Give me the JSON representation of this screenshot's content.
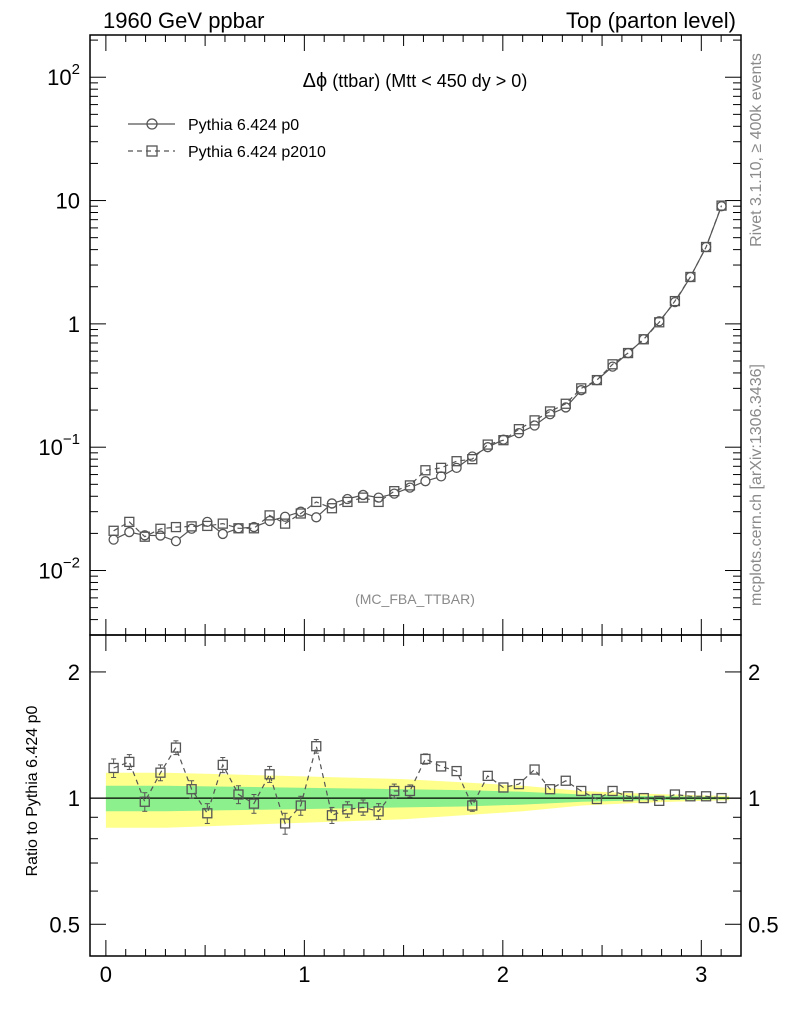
{
  "header": {
    "left": "1960 GeV ppbar",
    "right": "Top (parton level)"
  },
  "side_labels": {
    "rivet": "Rivet 3.1.10, ≥ 400k events",
    "mcplots": "mcplots.cern.ch [arXiv:1306.3436]"
  },
  "chart_data": [
    {
      "type": "line",
      "title_symbol": "Δϕ",
      "title_rest": " (ttbar) (Mtt < 450 dy > 0)",
      "analysis_tag": "(MC_FBA_TTBAR)",
      "yscale": "log",
      "xlim": [
        -0.08,
        3.2
      ],
      "ylim": [
        0.003,
        220
      ],
      "x_ticks": [
        0,
        1,
        2,
        3
      ],
      "y_ticks": [
        {
          "base": "10",
          "exp": "2",
          "value": 100
        },
        {
          "base": "10",
          "exp": "",
          "value": 10
        },
        {
          "base": "1",
          "exp": "",
          "value": 1
        },
        {
          "base": "10",
          "exp": "−1",
          "value": 0.1
        },
        {
          "base": "10",
          "exp": "−2",
          "value": 0.01
        }
      ],
      "legend_position": "top-left",
      "series": [
        {
          "name": "Pythia 6.424 p0",
          "line_style": "solid",
          "marker": "circle",
          "color": "#555555",
          "x": [
            0.039,
            0.118,
            0.196,
            0.275,
            0.353,
            0.432,
            0.511,
            0.589,
            0.668,
            0.746,
            0.825,
            0.903,
            0.982,
            1.06,
            1.139,
            1.217,
            1.296,
            1.374,
            1.453,
            1.532,
            1.61,
            1.689,
            1.767,
            1.846,
            1.924,
            2.003,
            2.081,
            2.16,
            2.238,
            2.317,
            2.395,
            2.474,
            2.553,
            2.631,
            2.71,
            2.788,
            2.867,
            2.945,
            3.024,
            3.102
          ],
          "values": [
            0.0178,
            0.0205,
            0.0193,
            0.0192,
            0.0173,
            0.0218,
            0.0248,
            0.0198,
            0.022,
            0.0225,
            0.0252,
            0.0273,
            0.03,
            0.027,
            0.035,
            0.038,
            0.041,
            0.039,
            0.042,
            0.047,
            0.053,
            0.058,
            0.068,
            0.084,
            0.1,
            0.115,
            0.13,
            0.15,
            0.185,
            0.21,
            0.29,
            0.35,
            0.45,
            0.58,
            0.75,
            1.05,
            1.5,
            2.4,
            4.2,
            9.0
          ]
        },
        {
          "name": "Pythia 6.424 p2010",
          "line_style": "dashed",
          "marker": "square",
          "color": "#555555",
          "x": [
            0.039,
            0.118,
            0.196,
            0.275,
            0.353,
            0.432,
            0.511,
            0.589,
            0.668,
            0.746,
            0.825,
            0.903,
            0.982,
            1.06,
            1.139,
            1.217,
            1.296,
            1.374,
            1.453,
            1.532,
            1.61,
            1.689,
            1.767,
            1.846,
            1.924,
            2.003,
            2.081,
            2.16,
            2.238,
            2.317,
            2.395,
            2.474,
            2.553,
            2.631,
            2.71,
            2.788,
            2.867,
            2.945,
            3.024,
            3.102
          ],
          "values": [
            0.021,
            0.0248,
            0.0188,
            0.0218,
            0.0225,
            0.0228,
            0.023,
            0.024,
            0.022,
            0.022,
            0.028,
            0.024,
            0.029,
            0.036,
            0.032,
            0.036,
            0.039,
            0.036,
            0.044,
            0.049,
            0.065,
            0.068,
            0.077,
            0.08,
            0.105,
            0.114,
            0.14,
            0.165,
            0.195,
            0.225,
            0.3,
            0.35,
            0.47,
            0.58,
            0.75,
            1.03,
            1.53,
            2.4,
            4.2,
            9.1
          ]
        }
      ]
    },
    {
      "type": "line",
      "ylabel": "Ratio to Pythia 6.424 p0",
      "yscale": "log",
      "xlim": [
        -0.08,
        3.2
      ],
      "ylim": [
        0.42,
        2.45
      ],
      "x_ticks": [
        0,
        1,
        2,
        3
      ],
      "y_ticks": [
        {
          "label": "2",
          "value": 2
        },
        {
          "label": "1",
          "value": 1
        },
        {
          "label": "0.5",
          "value": 0.5
        }
      ],
      "reference_line": 1.0,
      "bands": {
        "yellow_color": "#ffff8c",
        "green_color": "#8cf08c",
        "x": [
          0.0,
          0.3,
          0.6,
          0.9,
          1.2,
          1.5,
          1.8,
          2.1,
          2.4,
          2.7,
          3.0,
          3.14
        ],
        "yellow_half_width": [
          0.15,
          0.15,
          0.14,
          0.13,
          0.12,
          0.11,
          0.09,
          0.07,
          0.04,
          0.025,
          0.015,
          0.012
        ],
        "green_half_width": [
          0.07,
          0.07,
          0.065,
          0.06,
          0.055,
          0.05,
          0.045,
          0.035,
          0.02,
          0.012,
          0.008,
          0.006
        ]
      },
      "series": [
        {
          "name": "Pythia 6.424 p2010",
          "line_style": "dashed",
          "marker": "square",
          "color": "#555555",
          "x": [
            0.039,
            0.118,
            0.196,
            0.275,
            0.353,
            0.432,
            0.511,
            0.589,
            0.668,
            0.746,
            0.825,
            0.903,
            0.982,
            1.06,
            1.139,
            1.217,
            1.296,
            1.374,
            1.453,
            1.532,
            1.61,
            1.689,
            1.767,
            1.846,
            1.924,
            2.003,
            2.081,
            2.16,
            2.238,
            2.317,
            2.395,
            2.474,
            2.553,
            2.631,
            2.71,
            2.788,
            2.867,
            2.945,
            3.024,
            3.102
          ],
          "values": [
            1.18,
            1.22,
            0.98,
            1.15,
            1.32,
            1.05,
            0.92,
            1.2,
            1.02,
            0.97,
            1.14,
            0.87,
            0.96,
            1.33,
            0.91,
            0.94,
            0.95,
            0.93,
            1.04,
            1.04,
            1.24,
            1.19,
            1.16,
            0.96,
            1.13,
            1.06,
            1.08,
            1.17,
            1.05,
            1.1,
            1.04,
            0.995,
            1.04,
            1.01,
            1.0,
            0.985,
            1.02,
            1.01,
            1.01,
            1.0
          ],
          "errors": [
            0.06,
            0.05,
            0.05,
            0.05,
            0.05,
            0.05,
            0.05,
            0.05,
            0.05,
            0.05,
            0.05,
            0.05,
            0.05,
            0.05,
            0.04,
            0.04,
            0.04,
            0.04,
            0.04,
            0.035,
            0.035,
            0.03,
            0.03,
            0.03,
            0.025,
            0.025,
            0.02,
            0.02,
            0.02,
            0.015,
            0.012,
            0.01,
            0.01,
            0.008,
            0.007,
            0.006,
            0.006,
            0.005,
            0.004,
            0.004
          ]
        }
      ]
    }
  ]
}
